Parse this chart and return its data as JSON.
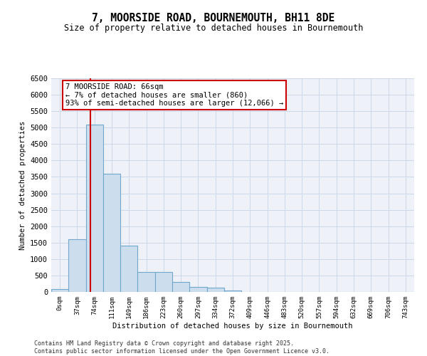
{
  "title": "7, MOORSIDE ROAD, BOURNEMOUTH, BH11 8DE",
  "subtitle": "Size of property relative to detached houses in Bournemouth",
  "xlabel": "Distribution of detached houses by size in Bournemouth",
  "ylabel": "Number of detached properties",
  "bin_labels": [
    "0sqm",
    "37sqm",
    "74sqm",
    "111sqm",
    "149sqm",
    "186sqm",
    "223sqm",
    "260sqm",
    "297sqm",
    "334sqm",
    "372sqm",
    "409sqm",
    "446sqm",
    "483sqm",
    "520sqm",
    "557sqm",
    "594sqm",
    "632sqm",
    "669sqm",
    "706sqm",
    "743sqm"
  ],
  "bar_values": [
    90,
    1600,
    5100,
    3600,
    1400,
    600,
    600,
    300,
    150,
    130,
    50,
    0,
    0,
    0,
    0,
    0,
    0,
    0,
    0,
    0,
    0
  ],
  "bar_color": "#ccdded",
  "bar_edge_color": "#6fa8cc",
  "annotation_text": "7 MOORSIDE ROAD: 66sqm\n← 7% of detached houses are smaller (860)\n93% of semi-detached houses are larger (12,066) →",
  "annotation_box_color": "#ffffff",
  "annotation_box_edge": "#cc0000",
  "ylim": [
    0,
    6500
  ],
  "yticks": [
    0,
    500,
    1000,
    1500,
    2000,
    2500,
    3000,
    3500,
    4000,
    4500,
    5000,
    5500,
    6000,
    6500
  ],
  "red_line_color": "#cc0000",
  "grid_color": "#cbd8e8",
  "bg_color": "#eef2f8",
  "footer1": "Contains HM Land Registry data © Crown copyright and database right 2025.",
  "footer2": "Contains public sector information licensed under the Open Government Licence v3.0."
}
